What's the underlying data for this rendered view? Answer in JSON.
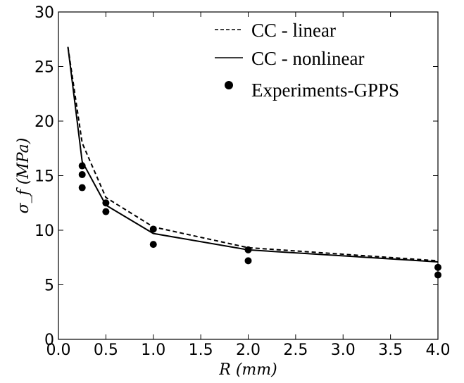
{
  "chart_data": {
    "type": "line",
    "xlabel": "R (mm)",
    "ylabel": "σ_f (MPa)",
    "xlim": [
      0.0,
      4.0
    ],
    "ylim": [
      0,
      30
    ],
    "xticks": [
      0.0,
      0.5,
      1.0,
      1.5,
      2.0,
      2.5,
      3.0,
      3.5,
      4.0
    ],
    "xtick_labels": [
      "0.0",
      "0.5",
      "1.0",
      "1.5",
      "2.0",
      "2.5",
      "3.0",
      "3.5",
      "4.0"
    ],
    "yticks": [
      0,
      5,
      10,
      15,
      20,
      25,
      30
    ],
    "ytick_labels": [
      "0",
      "5",
      "10",
      "15",
      "20",
      "25",
      "30"
    ],
    "grid": false,
    "legend_position": "top-right",
    "series": [
      {
        "name": "CC - linear",
        "style": "dashed",
        "color": "#000000",
        "x": [
          0.1,
          0.25,
          0.5,
          1.0,
          2.0,
          4.0
        ],
        "y": [
          26.8,
          18.0,
          13.0,
          10.3,
          8.4,
          7.2
        ]
      },
      {
        "name": "CC - nonlinear",
        "style": "solid",
        "color": "#000000",
        "x": [
          0.1,
          0.25,
          0.5,
          1.0,
          2.0,
          4.0
        ],
        "y": [
          26.8,
          16.3,
          12.3,
          9.7,
          8.2,
          7.1
        ]
      },
      {
        "name": "Experiments-GPPS",
        "style": "markers",
        "color": "#000000",
        "x": [
          0.25,
          0.25,
          0.25,
          0.5,
          0.5,
          1.0,
          1.0,
          2.0,
          2.0,
          4.0,
          4.0
        ],
        "y": [
          15.9,
          15.1,
          13.9,
          12.5,
          11.7,
          10.1,
          8.7,
          8.2,
          7.2,
          6.6,
          5.9
        ]
      }
    ]
  }
}
